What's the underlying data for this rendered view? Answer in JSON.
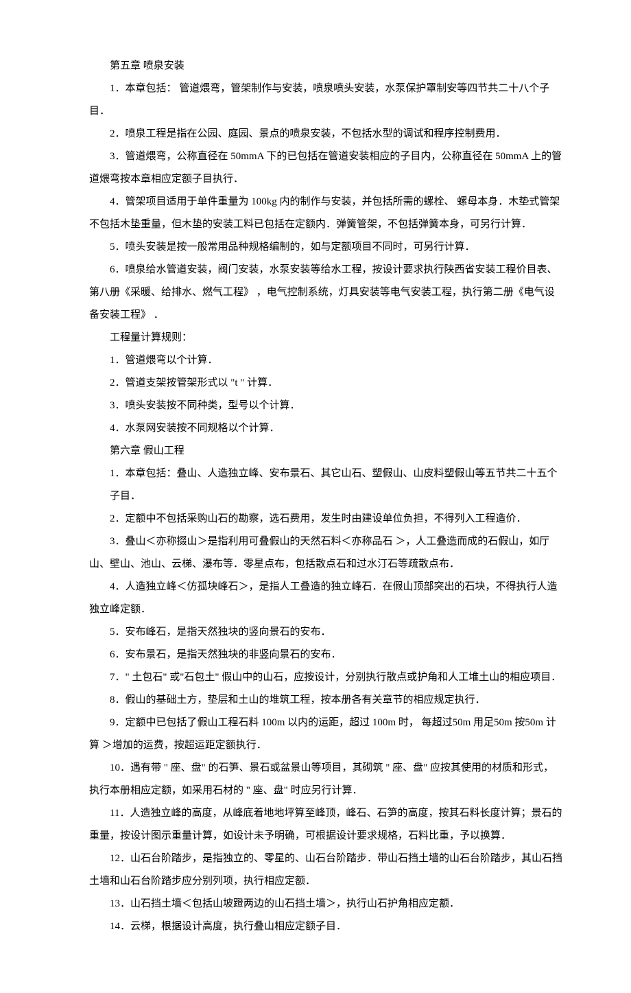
{
  "ch5": {
    "title": "第五章 喷泉安装",
    "p1": "1．本章包括： 管道煨弯，管架制作与安装，喷泉喷头安装，水泵保护罩制安等四节共二十八个子目．",
    "p2": "2．喷泉工程是指在公园、庭园、景点的喷泉安装，不包括水型的调试和程序控制费用．",
    "p3": "3．管道煨弯，公称直径在 50mmA 下的已包括在管道安装相应的子目内，公称直径在 50mmA 上的管道煨弯按本章相应定额子目执行．",
    "p4": "4．管架项目适用于单件重量为 100kg 内的制作与安装，并包括所需的螺栓、 螺母本身．木垫式管架不包括木垫重量，但木垫的安装工料已包括在定额内．弹簧管架，不包括弹簧本身，可另行计算．",
    "p5": "5．喷头安装是按一般常用品种规格编制的，如与定额项目不同时，可另行计算．",
    "p6": "6．喷泉给水管道安装，阀门安装，水泵安装等给水工程，按设计要求执行陕西省安装工程价目表、第八册《采暖、给排水、燃气工程》 ，电气控制系统，灯具安装等电气安装工程，执行第二册《电气设备安装工程》 ．",
    "rules_title": "工程量计算规则：",
    "r1": "1．管道煨弯以个计算．",
    "r2": "2．管道支架按管架形式以 \"t \" 计算．",
    "r3": "3．喷头安装按不同种类，型号以个计算．",
    "r4": "4．水泵网安装按不同规格以个计算．"
  },
  "ch6": {
    "title": "第六章 假山工程",
    "p1": "1．本章包括：叠山、人造独立峰、安布景石、其它山石、塑假山、山皮料塑假山等五节共二十五个",
    "p1b": "子目．",
    "p2": "2．定额中不包括采购山石的勘察，选石费用，发生时由建设单位负担，不得列入工程造价．",
    "p3": "3．叠山＜亦称掇山＞是指利用可叠假山的天然石料＜亦称品石 ＞，人工叠造而成的石假山，如厅山、壁山、池山、云梯、瀑布等．零星点布，包括散点石和过水汀石等疏散点布．",
    "p4": "4．人造独立峰＜仿孤块峰石＞，是指人工叠造的独立峰石．在假山顶部突出的石块，不得执行人造独立峰定额．",
    "p5": "5．安布峰石，是指天然独块的竖向景石的安布．",
    "p6": "6．安布景石，是指天然独块的非竖向景石的安布．",
    "p7": "7．\" 土包石\" 或\"石包土\" 假山中的山石，应按设计，分别执行散点或护角和人工堆土山的相应项目．",
    "p8": "8．假山的基础土方，垫层和土山的堆筑工程，按本册各有关章节的相应规定执行．",
    "p9": "9．定额中已包括了假山工程石料 100m 以内的运距，超过 100m 时， 每超过50m 用足50m 按50m 计算 ＞增加的运费，按超运距定额执行．",
    "p10": "10．遇有带 \" 座、盘\" 的石笋、景石或盆景山等项目，其砌筑 \" 座、盘\" 应按其使用的材质和形式，执行本册相应定额，如采用石材的 \" 座、盘\" 时应另行计算．",
    "p11": "11．人造独立峰的高度，从峰底着地地坪算至峰顶，峰石、石笋的高度，按其石料长度计算；景石的重量，按设计图示重量计算，如设计未予明确，可根据设计要求规格，石料比重，予以换算．",
    "p12": "12．山石台阶踏步，是指独立的、零星的、山石台阶踏步．带山石挡土墙的山石台阶踏步，其山石挡土墙和山石台阶踏步应分别列项，执行相应定额．",
    "p13": "13．山石挡土墙＜包括山坡蹬两边的山石挡土墙＞，执行山石护角相应定额．",
    "p14": "14．云梯，根据设计高度，执行叠山相应定额子目．"
  }
}
